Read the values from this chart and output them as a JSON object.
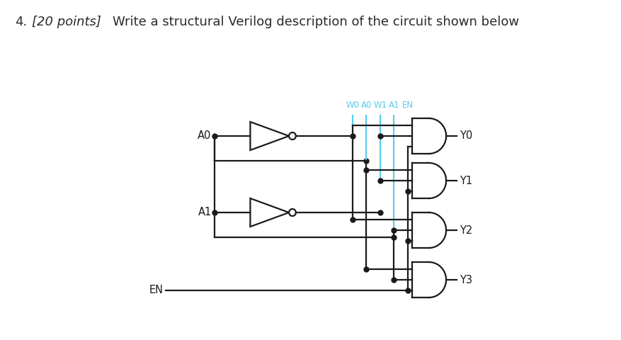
{
  "title_num": "4.",
  "title_italic": "[20 points]",
  "title_normal": "Write a structural Verilog description of the circuit shown below",
  "signal_labels": [
    "W0",
    "A0",
    "W1",
    "A1",
    "EN"
  ],
  "output_labels": [
    "Y0",
    "Y1",
    "Y2",
    "Y3"
  ],
  "cyan_color": "#55CCEE",
  "black_color": "#1a1a1a",
  "bg_color": "#ffffff",
  "title_color": "#2a2a2a",
  "title_fontsize": 13.0,
  "label_fontsize": 10.5,
  "lw": 1.6
}
